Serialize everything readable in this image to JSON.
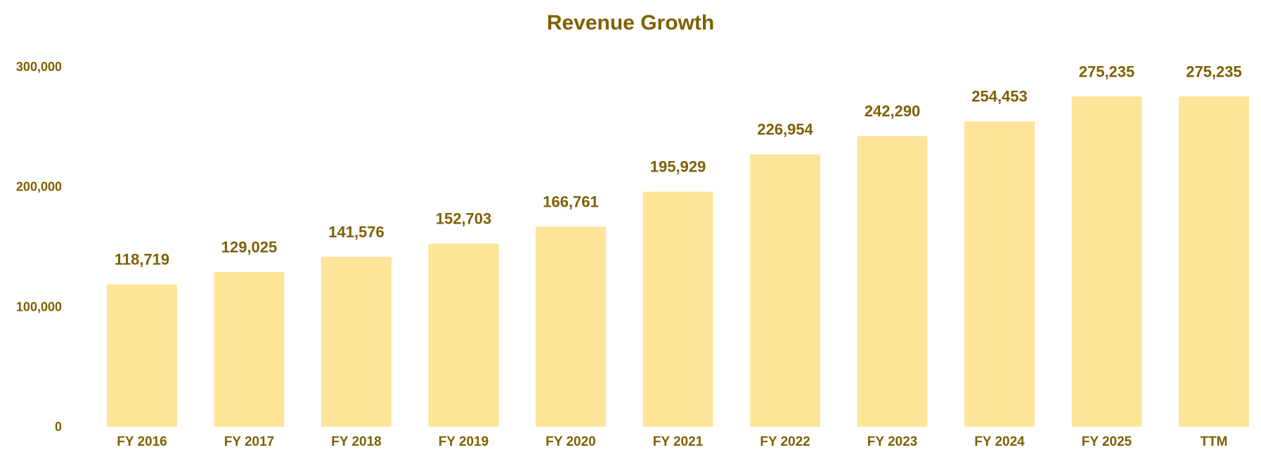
{
  "chart_data": {
    "type": "bar",
    "title": "Revenue Growth",
    "xlabel": "",
    "ylabel": "",
    "ylim": [
      0,
      300000
    ],
    "yticks": [
      0,
      100000,
      200000,
      300000
    ],
    "ytick_labels": [
      "0",
      "100,000",
      "200,000",
      "300,000"
    ],
    "categories": [
      "FY 2016",
      "FY 2017",
      "FY 2018",
      "FY 2019",
      "FY 2020",
      "FY 2021",
      "FY 2022",
      "FY 2023",
      "FY 2024",
      "FY 2025",
      "TTM"
    ],
    "values": [
      118719,
      129025,
      141576,
      152703,
      166761,
      195929,
      226954,
      242290,
      254453,
      275235,
      275235
    ],
    "value_labels": [
      "118,719",
      "129,025",
      "141,576",
      "152,703",
      "166,761",
      "195,929",
      "226,954",
      "242,290",
      "254,453",
      "275,235",
      "275,235"
    ],
    "grid": false,
    "legend": "none",
    "colors": {
      "bar": "#FFE599",
      "text": "#7F6000"
    }
  }
}
